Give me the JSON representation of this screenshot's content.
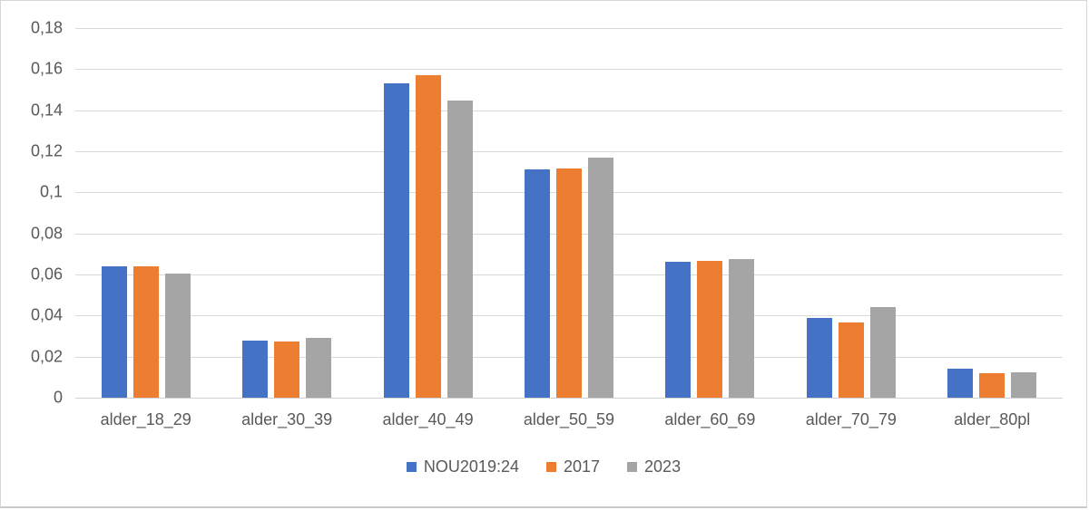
{
  "chart_data": {
    "type": "bar",
    "title": "",
    "xlabel": "",
    "ylabel": "",
    "categories": [
      "alder_18_29",
      "alder_30_39",
      "alder_40_49",
      "alder_50_59",
      "alder_60_69",
      "alder_70_79",
      "alder_80pl"
    ],
    "series": [
      {
        "name": "NOU2019:24",
        "color": "#4472C4",
        "values": [
          0.064,
          0.028,
          0.153,
          0.111,
          0.066,
          0.039,
          0.014
        ]
      },
      {
        "name": "2017",
        "color": "#ED7D31",
        "values": [
          0.064,
          0.0275,
          0.157,
          0.1115,
          0.0665,
          0.0365,
          0.012
        ]
      },
      {
        "name": "2023",
        "color": "#A5A5A5",
        "values": [
          0.0605,
          0.029,
          0.1445,
          0.117,
          0.0675,
          0.044,
          0.0125
        ]
      }
    ],
    "ylim": [
      0,
      0.18
    ],
    "yticks": [
      {
        "value": 0.18,
        "label": "0,18"
      },
      {
        "value": 0.16,
        "label": "0,16"
      },
      {
        "value": 0.14,
        "label": "0,14"
      },
      {
        "value": 0.12,
        "label": "0,12"
      },
      {
        "value": 0.1,
        "label": "0,1"
      },
      {
        "value": 0.08,
        "label": "0,08"
      },
      {
        "value": 0.06,
        "label": "0,06"
      },
      {
        "value": 0.04,
        "label": "0,04"
      },
      {
        "value": 0.02,
        "label": "0,02"
      },
      {
        "value": 0.0,
        "label": "0"
      }
    ],
    "decimal_separator": ",",
    "grid": true,
    "legend_position": "bottom",
    "colors": {
      "gridline": "#D9D9D9",
      "axis_text": "#595959",
      "background": "#FFFFFF"
    }
  }
}
